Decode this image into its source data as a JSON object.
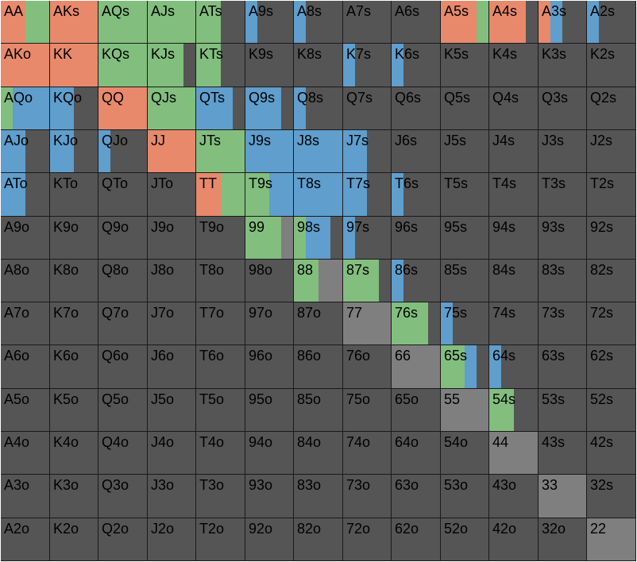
{
  "palette": {
    "raise": "#e8896c",
    "call": "#82be7e",
    "threebet": "#5f9ecd",
    "limp": "#7f7f7f",
    "fold": "#555555"
  },
  "ranks": [
    "A",
    "K",
    "Q",
    "J",
    "T",
    "9",
    "8",
    "7",
    "6",
    "5",
    "4",
    "3",
    "2"
  ],
  "strategy": {
    "AA": [
      [
        "raise",
        0.5
      ],
      [
        "call",
        0.5
      ]
    ],
    "AKs": [
      [
        "raise",
        1.0
      ]
    ],
    "AQs": [
      [
        "call",
        1.0
      ]
    ],
    "AJs": [
      [
        "call",
        1.0
      ]
    ],
    "ATs": [
      [
        "call",
        0.5
      ],
      [
        "fold",
        0.5
      ]
    ],
    "A9s": [
      [
        "threebet",
        0.25
      ],
      [
        "fold",
        0.75
      ]
    ],
    "A8s": [
      [
        "threebet",
        0.25
      ],
      [
        "fold",
        0.75
      ]
    ],
    "A5s": [
      [
        "raise",
        0.75
      ],
      [
        "call",
        0.25
      ]
    ],
    "A4s": [
      [
        "raise",
        0.75
      ],
      [
        "fold",
        0.25
      ]
    ],
    "A3s": [
      [
        "raise",
        0.25
      ],
      [
        "threebet",
        0.25
      ],
      [
        "fold",
        0.5
      ]
    ],
    "A2s": [
      [
        "threebet",
        0.25
      ],
      [
        "fold",
        0.75
      ]
    ],
    "AKo": [
      [
        "raise",
        1.0
      ]
    ],
    "KK": [
      [
        "raise",
        1.0
      ]
    ],
    "KQs": [
      [
        "call",
        1.0
      ]
    ],
    "KJs": [
      [
        "call",
        0.75
      ],
      [
        "fold",
        0.25
      ]
    ],
    "KTs": [
      [
        "call",
        0.5
      ],
      [
        "fold",
        0.5
      ]
    ],
    "K7s": [
      [
        "threebet",
        0.25
      ],
      [
        "fold",
        0.75
      ]
    ],
    "K6s": [
      [
        "threebet",
        0.25
      ],
      [
        "fold",
        0.75
      ]
    ],
    "AQo": [
      [
        "call",
        0.25
      ],
      [
        "threebet",
        0.75
      ]
    ],
    "KQo": [
      [
        "threebet",
        0.5
      ],
      [
        "fold",
        0.5
      ]
    ],
    "QQ": [
      [
        "raise",
        1.0
      ]
    ],
    "QJs": [
      [
        "call",
        1.0
      ]
    ],
    "QTs": [
      [
        "threebet",
        0.75
      ],
      [
        "fold",
        0.25
      ]
    ],
    "Q9s": [
      [
        "threebet",
        0.75
      ],
      [
        "fold",
        0.25
      ]
    ],
    "Q8s": [
      [
        "threebet",
        0.25
      ],
      [
        "fold",
        0.75
      ]
    ],
    "AJo": [
      [
        "threebet",
        0.5
      ],
      [
        "fold",
        0.5
      ]
    ],
    "KJo": [
      [
        "threebet",
        0.5
      ],
      [
        "fold",
        0.5
      ]
    ],
    "QJo": [
      [
        "threebet",
        0.25
      ],
      [
        "fold",
        0.75
      ]
    ],
    "JJ": [
      [
        "raise",
        1.0
      ]
    ],
    "JTs": [
      [
        "call",
        1.0
      ]
    ],
    "J9s": [
      [
        "threebet",
        1.0
      ]
    ],
    "J8s": [
      [
        "threebet",
        1.0
      ]
    ],
    "J7s": [
      [
        "threebet",
        0.5
      ],
      [
        "fold",
        0.5
      ]
    ],
    "ATo": [
      [
        "threebet",
        0.5
      ],
      [
        "fold",
        0.5
      ]
    ],
    "TT": [
      [
        "raise",
        0.5
      ],
      [
        "call",
        0.5
      ]
    ],
    "T9s": [
      [
        "call",
        0.5
      ],
      [
        "threebet",
        0.5
      ]
    ],
    "T8s": [
      [
        "threebet",
        1.0
      ]
    ],
    "T7s": [
      [
        "threebet",
        0.5
      ],
      [
        "fold",
        0.5
      ]
    ],
    "T6s": [
      [
        "threebet",
        0.25
      ],
      [
        "fold",
        0.75
      ]
    ],
    "99": [
      [
        "call",
        0.75
      ],
      [
        "limp",
        0.25
      ]
    ],
    "98s": [
      [
        "call",
        0.25
      ],
      [
        "threebet",
        0.5
      ],
      [
        "fold",
        0.25
      ]
    ],
    "97s": [
      [
        "threebet",
        0.25
      ],
      [
        "fold",
        0.75
      ]
    ],
    "88": [
      [
        "call",
        0.5
      ],
      [
        "limp",
        0.5
      ]
    ],
    "87s": [
      [
        "call",
        0.75
      ],
      [
        "fold",
        0.25
      ]
    ],
    "86s": [
      [
        "threebet",
        0.25
      ],
      [
        "fold",
        0.75
      ]
    ],
    "77": [
      [
        "limp",
        1.0
      ]
    ],
    "76s": [
      [
        "call",
        0.75
      ],
      [
        "fold",
        0.25
      ]
    ],
    "75s": [
      [
        "threebet",
        0.25
      ],
      [
        "fold",
        0.75
      ]
    ],
    "66": [
      [
        "limp",
        1.0
      ]
    ],
    "65s": [
      [
        "call",
        0.5
      ],
      [
        "threebet",
        0.25
      ],
      [
        "fold",
        0.25
      ]
    ],
    "64s": [
      [
        "threebet",
        0.25
      ],
      [
        "fold",
        0.75
      ]
    ],
    "55": [
      [
        "limp",
        1.0
      ]
    ],
    "54s": [
      [
        "call",
        0.5
      ],
      [
        "fold",
        0.5
      ]
    ],
    "44": [
      [
        "limp",
        1.0
      ]
    ],
    "33": [
      [
        "limp",
        1.0
      ]
    ],
    "22": [
      [
        "limp",
        1.0
      ]
    ]
  }
}
